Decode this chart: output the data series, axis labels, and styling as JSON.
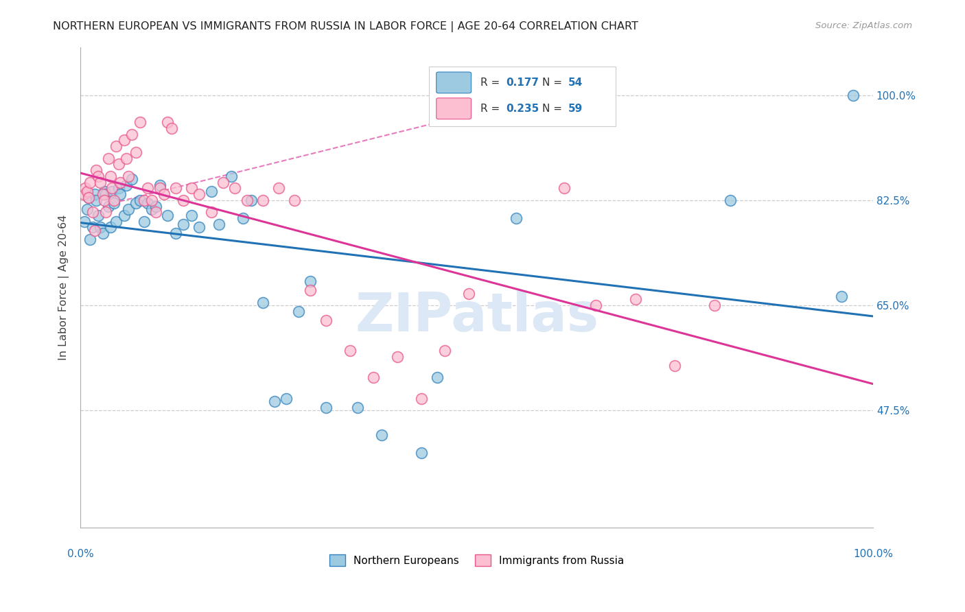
{
  "title": "NORTHERN EUROPEAN VS IMMIGRANTS FROM RUSSIA IN LABOR FORCE | AGE 20-64 CORRELATION CHART",
  "source": "Source: ZipAtlas.com",
  "ylabel": "In Labor Force | Age 20-64",
  "y_ticks": [
    0.475,
    0.65,
    0.825,
    1.0
  ],
  "y_tick_labels": [
    "47.5%",
    "65.0%",
    "82.5%",
    "100.0%"
  ],
  "x_range": [
    0.0,
    1.0
  ],
  "y_range": [
    0.28,
    1.08
  ],
  "legend_blue_r": "0.177",
  "legend_blue_n": "54",
  "legend_pink_r": "0.235",
  "legend_pink_n": "59",
  "legend_label_blue": "Northern Europeans",
  "legend_label_pink": "Immigrants from Russia",
  "watermark": "ZIPatlas",
  "blue_color": "#9ecae1",
  "pink_color": "#fcbfd2",
  "blue_edge_color": "#3182bd",
  "pink_edge_color": "#e8558a",
  "blue_line_color": "#2171b5",
  "pink_line_color": "#dd3497",
  "blue_scatter_x": [
    0.005,
    0.008,
    0.01,
    0.012,
    0.015,
    0.018,
    0.02,
    0.022,
    0.025,
    0.028,
    0.03,
    0.032,
    0.035,
    0.038,
    0.04,
    0.042,
    0.045,
    0.048,
    0.05,
    0.055,
    0.058,
    0.06,
    0.065,
    0.07,
    0.075,
    0.08,
    0.085,
    0.09,
    0.095,
    0.1,
    0.11,
    0.12,
    0.13,
    0.14,
    0.15,
    0.165,
    0.175,
    0.19,
    0.205,
    0.215,
    0.23,
    0.245,
    0.26,
    0.275,
    0.29,
    0.31,
    0.35,
    0.38,
    0.43,
    0.45,
    0.55,
    0.82,
    0.96,
    0.975
  ],
  "blue_scatter_y": [
    0.79,
    0.81,
    0.83,
    0.76,
    0.78,
    0.835,
    0.825,
    0.8,
    0.78,
    0.77,
    0.84,
    0.835,
    0.815,
    0.78,
    0.84,
    0.82,
    0.79,
    0.845,
    0.835,
    0.8,
    0.85,
    0.81,
    0.86,
    0.82,
    0.825,
    0.79,
    0.82,
    0.81,
    0.815,
    0.85,
    0.8,
    0.77,
    0.785,
    0.8,
    0.78,
    0.84,
    0.785,
    0.865,
    0.795,
    0.825,
    0.655,
    0.49,
    0.495,
    0.64,
    0.69,
    0.48,
    0.48,
    0.435,
    0.405,
    0.53,
    0.795,
    0.825,
    0.665,
    1.0
  ],
  "pink_scatter_x": [
    0.004,
    0.006,
    0.008,
    0.01,
    0.012,
    0.015,
    0.018,
    0.02,
    0.022,
    0.025,
    0.028,
    0.03,
    0.032,
    0.035,
    0.038,
    0.04,
    0.042,
    0.045,
    0.048,
    0.05,
    0.055,
    0.058,
    0.06,
    0.065,
    0.07,
    0.075,
    0.08,
    0.085,
    0.09,
    0.095,
    0.1,
    0.105,
    0.11,
    0.115,
    0.12,
    0.13,
    0.14,
    0.15,
    0.165,
    0.18,
    0.195,
    0.21,
    0.23,
    0.25,
    0.27,
    0.29,
    0.31,
    0.34,
    0.37,
    0.4,
    0.43,
    0.46,
    0.49,
    0.56,
    0.61,
    0.65,
    0.7,
    0.75,
    0.8
  ],
  "pink_scatter_y": [
    0.835,
    0.845,
    0.84,
    0.83,
    0.855,
    0.805,
    0.775,
    0.875,
    0.865,
    0.855,
    0.835,
    0.825,
    0.805,
    0.895,
    0.865,
    0.845,
    0.825,
    0.915,
    0.885,
    0.855,
    0.925,
    0.895,
    0.865,
    0.935,
    0.905,
    0.955,
    0.825,
    0.845,
    0.825,
    0.805,
    0.845,
    0.835,
    0.955,
    0.945,
    0.845,
    0.825,
    0.845,
    0.835,
    0.805,
    0.855,
    0.845,
    0.825,
    0.825,
    0.845,
    0.825,
    0.675,
    0.625,
    0.575,
    0.53,
    0.565,
    0.495,
    0.575,
    0.67,
    1.0,
    0.845,
    0.65,
    0.66,
    0.55,
    0.65
  ]
}
